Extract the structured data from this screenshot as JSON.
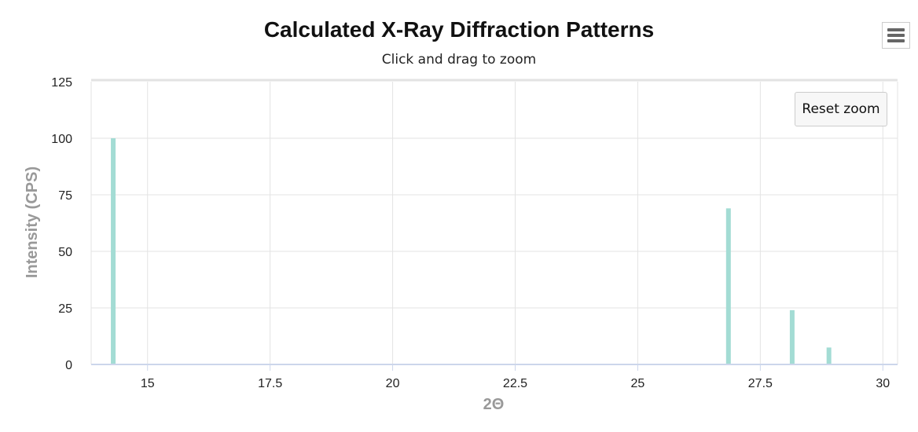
{
  "chart_data": {
    "type": "bar",
    "title": "Calculated X-Ray Diffraction Patterns",
    "subtitle": "Click and drag to zoom",
    "xlabel": "2Θ",
    "ylabel": "Intensity (CPS)",
    "xlim": [
      13.85,
      30.3
    ],
    "ylim": [
      0,
      125
    ],
    "x_ticks": [
      15,
      17.5,
      20,
      22.5,
      25,
      27.5,
      30
    ],
    "x_tick_labels": [
      "15",
      "17.5",
      "20",
      "22.5",
      "25",
      "27.5",
      "30"
    ],
    "y_ticks": [
      0,
      25,
      50,
      75,
      100,
      125
    ],
    "y_tick_labels": [
      "0",
      "25",
      "50",
      "75",
      "100",
      "125"
    ],
    "grid": true,
    "series": [
      {
        "x": [
          14.3,
          26.85,
          28.15,
          28.9
        ],
        "values": [
          100,
          69,
          24,
          7.5
        ]
      }
    ],
    "colors": {
      "bar": "#a3dcd4",
      "grid": "#e3e3e3",
      "axis": "#ccd6eb"
    }
  },
  "controls": {
    "reset_zoom_label": "Reset zoom",
    "menu_icon": "hamburger-menu-icon"
  }
}
